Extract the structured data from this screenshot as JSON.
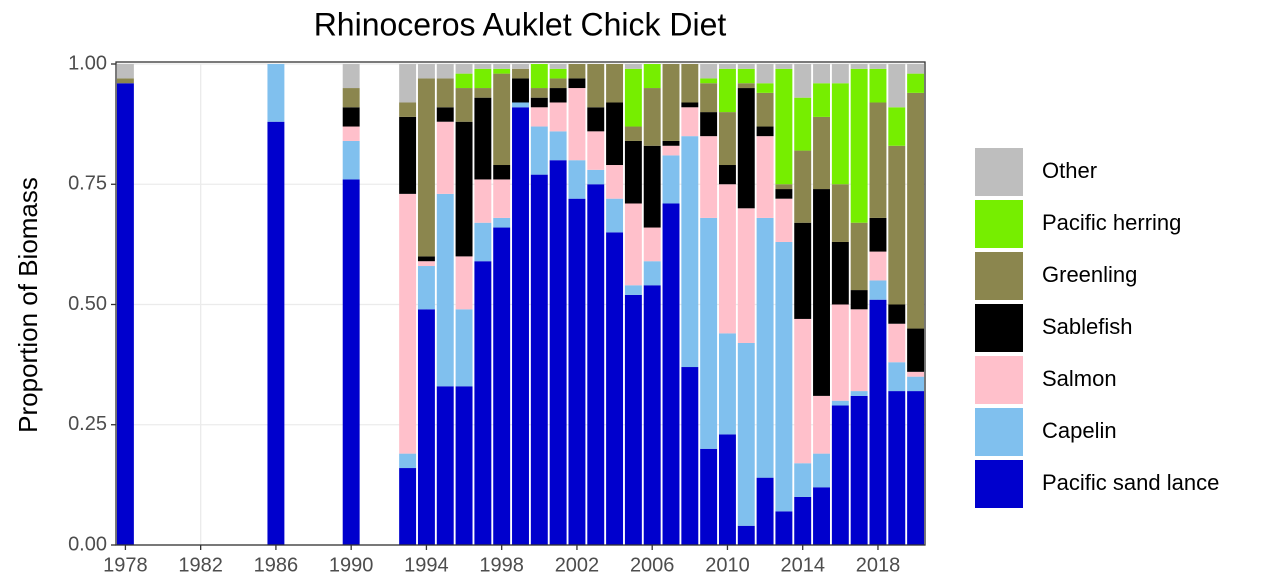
{
  "chart_data": {
    "type": "stacked_bar",
    "title": "Rhinoceros Auklet Chick Diet",
    "y_label": "Proportion of Biomass",
    "x": [
      1978,
      1986,
      1990,
      1993,
      1994,
      1995,
      1996,
      1997,
      1998,
      1999,
      2000,
      2001,
      2002,
      2003,
      2004,
      2005,
      2006,
      2007,
      2008,
      2009,
      2010,
      2011,
      2012,
      2013,
      2014,
      2015,
      2016,
      2017,
      2018,
      2019,
      2020
    ],
    "series": [
      {
        "name": "Pacific sand lance",
        "color": "#0000cd",
        "values": [
          0.96,
          0.88,
          0.76,
          0.16,
          0.49,
          0.33,
          0.33,
          0.59,
          0.66,
          0.91,
          0.77,
          0.8,
          0.72,
          0.75,
          0.65,
          0.52,
          0.54,
          0.71,
          0.37,
          0.2,
          0.23,
          0.04,
          0.14,
          0.07,
          0.1,
          0.12,
          0.29,
          0.31,
          0.51,
          0.32,
          0.32
        ]
      },
      {
        "name": "Capelin",
        "color": "#80c0ee",
        "values": [
          0,
          0.12,
          0.08,
          0.03,
          0.09,
          0.4,
          0.16,
          0.08,
          0.02,
          0.01,
          0.1,
          0.06,
          0.08,
          0.03,
          0.07,
          0.02,
          0.05,
          0.1,
          0.48,
          0.48,
          0.21,
          0.38,
          0.54,
          0.56,
          0.07,
          0.07,
          0.01,
          0.01,
          0.04,
          0.06,
          0.03
        ]
      },
      {
        "name": "Salmon",
        "color": "#ffc0cb",
        "values": [
          0,
          0,
          0.03,
          0.54,
          0.01,
          0.15,
          0.11,
          0.09,
          0.08,
          0,
          0.04,
          0.06,
          0.15,
          0.08,
          0.07,
          0.17,
          0.07,
          0.02,
          0.06,
          0.17,
          0.31,
          0.28,
          0.17,
          0.09,
          0.3,
          0.12,
          0.2,
          0.17,
          0.06,
          0.08,
          0.01
        ]
      },
      {
        "name": "Sablefish",
        "color": "#000000",
        "values": [
          0,
          0,
          0.04,
          0.16,
          0.01,
          0.03,
          0.28,
          0.17,
          0.03,
          0.05,
          0.02,
          0.03,
          0.02,
          0.05,
          0.13,
          0.13,
          0.17,
          0.01,
          0.01,
          0.05,
          0.04,
          0.25,
          0.02,
          0.02,
          0.2,
          0.43,
          0.13,
          0.04,
          0.07,
          0.04,
          0.09
        ]
      },
      {
        "name": "Greenling",
        "color": "#8b864e",
        "values": [
          0.01,
          0,
          0.04,
          0.03,
          0.37,
          0.06,
          0.07,
          0.02,
          0.19,
          0.02,
          0.02,
          0.02,
          0.03,
          0.09,
          0.08,
          0.03,
          0.12,
          0.16,
          0.08,
          0.06,
          0.11,
          0.01,
          0.07,
          0.01,
          0.15,
          0.15,
          0.12,
          0.14,
          0.24,
          0.33,
          0.49
        ]
      },
      {
        "name": "Pacific herring",
        "color": "#76ee00",
        "values": [
          0,
          0,
          0,
          0,
          0,
          0,
          0.03,
          0.04,
          0.01,
          0,
          0.05,
          0.02,
          0,
          0,
          0,
          0.12,
          0.05,
          0,
          0,
          0.01,
          0.09,
          0.03,
          0.02,
          0.24,
          0.11,
          0.07,
          0.21,
          0.32,
          0.07,
          0.08,
          0.04
        ]
      },
      {
        "name": "Other",
        "color": "#bebebe",
        "values": [
          0.03,
          0,
          0.05,
          0.08,
          0.03,
          0.03,
          0.02,
          0.01,
          0.01,
          0.01,
          0,
          0.01,
          0,
          0,
          0,
          0.01,
          0,
          0,
          0,
          0.03,
          0.01,
          0.01,
          0.04,
          0.01,
          0.07,
          0.04,
          0.04,
          0.01,
          0.01,
          0.09,
          0.02
        ]
      }
    ],
    "xlim": [
      1977.5,
      2020.5
    ],
    "xticks": [
      1978,
      1982,
      1986,
      1990,
      1994,
      1998,
      2002,
      2006,
      2010,
      2014,
      2018
    ],
    "ylim": [
      0,
      1
    ],
    "yticks": [
      {
        "value": 0,
        "label": "0.00"
      },
      0.25,
      {
        "value": 0.5,
        "label": "0.50"
      },
      0.75,
      {
        "value": 1,
        "label": "1.00"
      }
    ],
    "grid": true,
    "legend": "right"
  }
}
